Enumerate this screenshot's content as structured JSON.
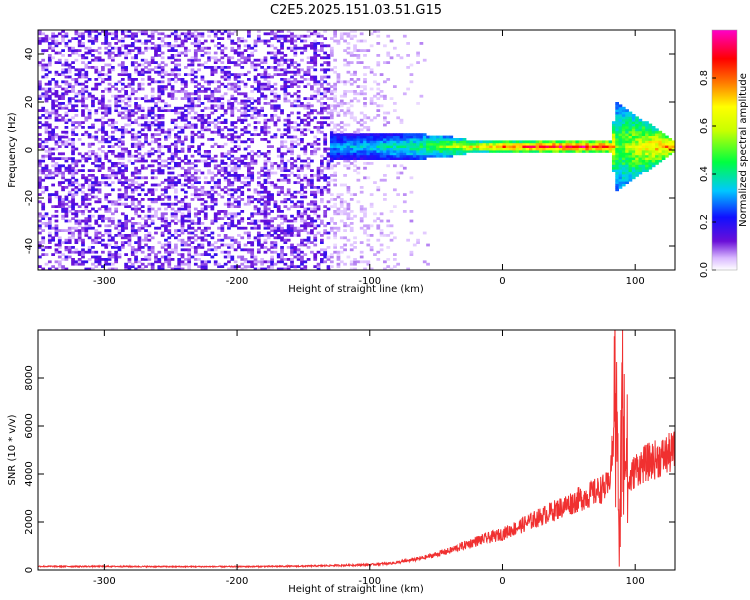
{
  "figure_title": "C2E5.2025.151.03.51.G15",
  "chart_data": [
    {
      "type": "heatmap",
      "xlabel": "Height of straight line (km)",
      "ylabel": "Frequency (Hz)",
      "xlim": [
        -350,
        130
      ],
      "ylim": [
        -50,
        50
      ],
      "xticks": [
        -300,
        -200,
        -100,
        0,
        100
      ],
      "yticks": [
        -40,
        -20,
        0,
        20,
        40
      ],
      "grid": false,
      "colorbar": {
        "label": "Normalized spectral amplitude",
        "range": [
          0,
          1
        ],
        "ticks": [
          0.0,
          0.2,
          0.4,
          0.6,
          0.8
        ],
        "colors": [
          "#ffffff",
          "#6a0fd8",
          "#1010ff",
          "#00c8ff",
          "#00ff40",
          "#ffff00",
          "#ff7a00",
          "#ff0000",
          "#ff00c8"
        ]
      },
      "noise_region": {
        "x": [
          -350,
          -130
        ],
        "y": [
          -50,
          50
        ],
        "typical_amplitude": 0.1
      },
      "fade_region": {
        "x": [
          -130,
          -55
        ],
        "y": [
          -50,
          50
        ],
        "typical_amplitude": 0.05
      },
      "signal_band": [
        {
          "x": -130,
          "amplitude": 0.3,
          "half_width_hz": 6
        },
        {
          "x": -100,
          "amplitude": 0.35,
          "half_width_hz": 5
        },
        {
          "x": -60,
          "amplitude": 0.45,
          "half_width_hz": 5
        },
        {
          "x": -40,
          "amplitude": 0.55,
          "half_width_hz": 4
        },
        {
          "x": -20,
          "amplitude": 0.7,
          "half_width_hz": 2
        },
        {
          "x": 0,
          "amplitude": 0.8,
          "half_width_hz": 2
        },
        {
          "x": 40,
          "amplitude": 0.9,
          "half_width_hz": 2
        },
        {
          "x": 80,
          "amplitude": 0.9,
          "half_width_hz": 2
        },
        {
          "x": 85,
          "amplitude": 0.5,
          "half_width_hz": 18
        },
        {
          "x": 130,
          "amplitude": 0.85,
          "half_width_hz": 2
        }
      ]
    },
    {
      "type": "line",
      "xlabel": "Height of straight line (km)",
      "ylabel": "SNR (10 * v/v)",
      "xlim": [
        -350,
        130
      ],
      "ylim": [
        0,
        10000
      ],
      "xticks": [
        -300,
        -200,
        -100,
        0,
        100
      ],
      "yticks": [
        0,
        2000,
        4000,
        6000,
        8000
      ],
      "grid": false,
      "series": [
        {
          "color": "#f03030",
          "x": [
            -350,
            -300,
            -250,
            -200,
            -150,
            -100,
            -80,
            -60,
            -40,
            -30,
            -20,
            -10,
            0,
            10,
            20,
            30,
            40,
            50,
            60,
            70,
            80,
            84,
            86,
            88,
            90,
            95,
            100,
            110,
            120,
            130
          ],
          "y": [
            150,
            150,
            140,
            140,
            160,
            220,
            300,
            500,
            800,
            1000,
            1200,
            1350,
            1500,
            1750,
            2000,
            2250,
            2500,
            2750,
            3000,
            3250,
            3500,
            5500,
            9500,
            200,
            6500,
            3600,
            4200,
            4500,
            4700,
            4950
          ]
        }
      ]
    }
  ]
}
